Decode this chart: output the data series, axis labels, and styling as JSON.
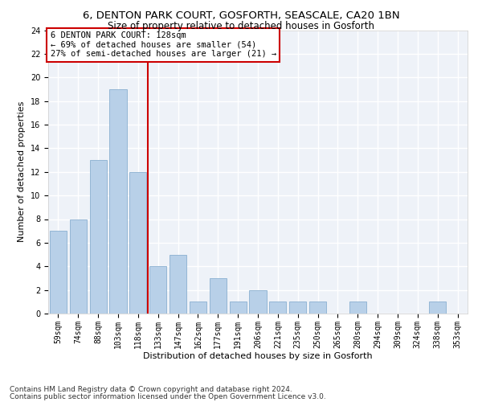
{
  "title1": "6, DENTON PARK COURT, GOSFORTH, SEASCALE, CA20 1BN",
  "title2": "Size of property relative to detached houses in Gosforth",
  "xlabel": "Distribution of detached houses by size in Gosforth",
  "ylabel": "Number of detached properties",
  "categories": [
    "59sqm",
    "74sqm",
    "88sqm",
    "103sqm",
    "118sqm",
    "133sqm",
    "147sqm",
    "162sqm",
    "177sqm",
    "191sqm",
    "206sqm",
    "221sqm",
    "235sqm",
    "250sqm",
    "265sqm",
    "280sqm",
    "294sqm",
    "309sqm",
    "324sqm",
    "338sqm",
    "353sqm"
  ],
  "values": [
    7,
    8,
    13,
    19,
    12,
    4,
    5,
    1,
    3,
    1,
    2,
    1,
    1,
    1,
    0,
    1,
    0,
    0,
    0,
    1,
    0
  ],
  "bar_color": "#b8d0e8",
  "bar_edge_color": "#8ab0d0",
  "vline_color": "#cc0000",
  "annotation_text": "6 DENTON PARK COURT: 128sqm\n← 69% of detached houses are smaller (54)\n27% of semi-detached houses are larger (21) →",
  "annotation_box_color": "#ffffff",
  "annotation_box_edge": "#cc0000",
  "ylim": [
    0,
    24
  ],
  "yticks": [
    0,
    2,
    4,
    6,
    8,
    10,
    12,
    14,
    16,
    18,
    20,
    22,
    24
  ],
  "background_color": "#eef2f8",
  "footer1": "Contains HM Land Registry data © Crown copyright and database right 2024.",
  "footer2": "Contains public sector information licensed under the Open Government Licence v3.0.",
  "title1_fontsize": 9.5,
  "title2_fontsize": 8.5,
  "xlabel_fontsize": 8,
  "ylabel_fontsize": 8,
  "tick_fontsize": 7,
  "annotation_fontsize": 7.5,
  "footer_fontsize": 6.5
}
